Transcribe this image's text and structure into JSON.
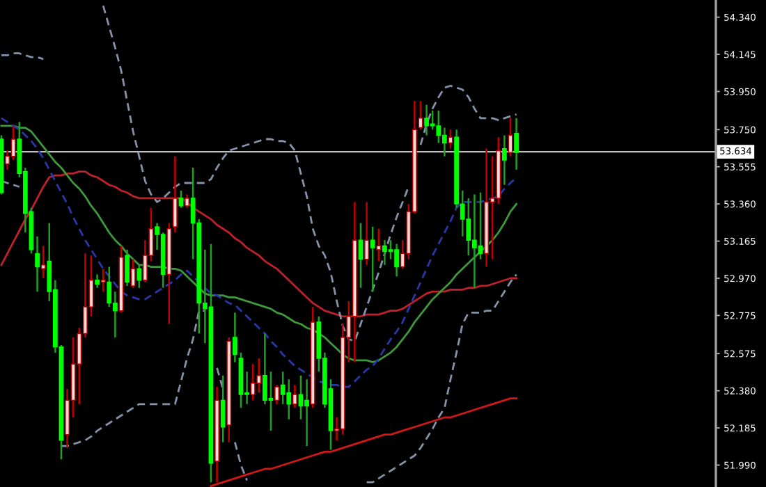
{
  "chart_data": {
    "type": "candlestick",
    "categories": [
      null,
      null,
      null,
      null,
      null,
      null,
      null,
      null,
      null,
      null,
      null,
      null,
      null,
      null,
      null,
      null,
      null,
      null,
      null,
      null,
      null,
      null,
      null,
      null,
      null,
      null,
      null,
      null,
      null,
      null,
      null,
      null,
      null,
      null,
      null,
      null,
      null,
      null,
      null,
      null,
      null,
      null,
      null,
      null,
      null,
      null,
      null,
      null,
      null,
      null,
      null,
      null,
      null,
      null,
      null,
      null,
      null,
      null,
      null,
      null,
      null,
      null,
      null,
      null,
      null,
      null,
      null,
      null,
      null,
      null,
      null,
      null,
      null,
      null,
      null,
      null,
      null,
      null,
      null,
      null,
      null,
      null,
      null,
      null,
      null,
      null,
      null
    ],
    "ohlc": [
      [
        53.7,
        53.72,
        53.41,
        53.42
      ],
      [
        53.57,
        53.64,
        53.54,
        53.61
      ],
      [
        53.61,
        53.77,
        53.59,
        53.7
      ],
      [
        53.7,
        53.79,
        53.5,
        53.52
      ],
      [
        53.53,
        53.55,
        53.21,
        53.31
      ],
      [
        53.32,
        53.34,
        53.1,
        53.12
      ],
      [
        53.1,
        53.19,
        52.9,
        53.03
      ],
      [
        53.02,
        53.14,
        52.97,
        53.04
      ],
      [
        53.06,
        53.26,
        52.85,
        52.9
      ],
      [
        52.91,
        52.96,
        52.58,
        52.61
      ],
      [
        52.61,
        52.62,
        52.02,
        52.12
      ],
      [
        52.15,
        52.39,
        52.08,
        52.33
      ],
      [
        52.33,
        52.66,
        52.24,
        52.52
      ],
      [
        52.52,
        52.71,
        52.31,
        52.68
      ],
      [
        52.68,
        53.1,
        52.66,
        52.82
      ],
      [
        52.82,
        53.09,
        52.77,
        52.96
      ],
      [
        52.96,
        52.99,
        52.92,
        52.94
      ],
      [
        52.95,
        53.02,
        52.9,
        52.96
      ],
      [
        52.95,
        53.03,
        52.82,
        52.84
      ],
      [
        52.84,
        52.9,
        52.66,
        52.8
      ],
      [
        52.8,
        53.14,
        52.79,
        53.08
      ],
      [
        53.09,
        53.12,
        52.93,
        52.95
      ],
      [
        52.93,
        53.07,
        52.92,
        53.02
      ],
      [
        53.02,
        53.04,
        52.92,
        52.96
      ],
      [
        52.96,
        53.17,
        52.95,
        53.09
      ],
      [
        53.09,
        53.34,
        53.06,
        53.23
      ],
      [
        53.24,
        53.26,
        53.12,
        53.2
      ],
      [
        53.2,
        53.21,
        52.92,
        52.99
      ],
      [
        52.99,
        53.26,
        52.73,
        53.23
      ],
      [
        53.24,
        53.61,
        53.21,
        53.39
      ],
      [
        53.39,
        53.43,
        53.34,
        53.35
      ],
      [
        53.35,
        53.41,
        53.34,
        53.39
      ],
      [
        53.39,
        53.55,
        53.07,
        53.26
      ],
      [
        53.26,
        53.28,
        52.68,
        52.84
      ],
      [
        52.84,
        53.12,
        52.63,
        52.81
      ],
      [
        52.82,
        53.15,
        51.9,
        52.0
      ],
      [
        52.01,
        52.4,
        51.9,
        52.33
      ],
      [
        52.33,
        52.46,
        52.11,
        52.19
      ],
      [
        52.2,
        52.66,
        52.11,
        52.64
      ],
      [
        52.66,
        52.79,
        52.53,
        52.57
      ],
      [
        52.55,
        52.58,
        52.29,
        52.36
      ],
      [
        52.37,
        52.48,
        52.31,
        52.36
      ],
      [
        52.36,
        52.52,
        52.33,
        52.42
      ],
      [
        52.42,
        52.55,
        52.37,
        52.46
      ],
      [
        52.46,
        52.68,
        52.31,
        52.33
      ],
      [
        52.34,
        52.48,
        52.17,
        52.33
      ],
      [
        52.33,
        52.41,
        52.31,
        52.4
      ],
      [
        52.41,
        52.48,
        52.31,
        52.36
      ],
      [
        52.37,
        52.44,
        52.23,
        52.31
      ],
      [
        52.31,
        52.41,
        52.29,
        52.36
      ],
      [
        52.36,
        52.46,
        52.23,
        52.3
      ],
      [
        52.33,
        52.44,
        52.09,
        52.3
      ],
      [
        52.31,
        52.82,
        52.29,
        52.74
      ],
      [
        52.74,
        52.77,
        52.48,
        52.55
      ],
      [
        52.55,
        52.58,
        52.29,
        52.31
      ],
      [
        52.39,
        52.44,
        52.07,
        52.17
      ],
      [
        52.17,
        52.24,
        52.12,
        52.18
      ],
      [
        52.18,
        52.73,
        52.15,
        52.66
      ],
      [
        52.66,
        52.85,
        52.53,
        52.77
      ],
      [
        52.77,
        53.37,
        52.53,
        53.17
      ],
      [
        53.17,
        53.26,
        52.92,
        53.07
      ],
      [
        53.07,
        53.37,
        53.04,
        53.17
      ],
      [
        53.17,
        53.24,
        52.9,
        53.13
      ],
      [
        53.12,
        53.23,
        53.06,
        53.14
      ],
      [
        53.14,
        53.17,
        53.04,
        53.11
      ],
      [
        53.12,
        53.17,
        53.07,
        53.11
      ],
      [
        53.12,
        53.15,
        52.98,
        53.03
      ],
      [
        53.03,
        53.17,
        53.02,
        53.1
      ],
      [
        53.1,
        53.36,
        53.07,
        53.32
      ],
      [
        53.32,
        53.9,
        53.31,
        53.75
      ],
      [
        53.76,
        53.9,
        53.75,
        53.81
      ],
      [
        53.81,
        53.88,
        53.72,
        53.77
      ],
      [
        53.78,
        53.85,
        53.75,
        53.77
      ],
      [
        53.77,
        53.85,
        53.68,
        53.72
      ],
      [
        53.72,
        53.76,
        53.61,
        53.68
      ],
      [
        53.68,
        53.75,
        53.65,
        53.71
      ],
      [
        53.71,
        53.75,
        53.34,
        53.36
      ],
      [
        53.36,
        53.43,
        53.19,
        53.28
      ],
      [
        53.28,
        53.39,
        53.09,
        53.17
      ],
      [
        53.17,
        53.41,
        52.92,
        53.13
      ],
      [
        53.14,
        53.42,
        53.07,
        53.1
      ],
      [
        53.1,
        53.65,
        53.03,
        53.37
      ],
      [
        53.37,
        53.61,
        53.07,
        53.39
      ],
      [
        53.39,
        53.71,
        53.36,
        53.64
      ],
      [
        53.65,
        53.72,
        53.46,
        53.59
      ],
      [
        53.63,
        53.81,
        53.61,
        53.72
      ],
      [
        53.73,
        53.81,
        53.54,
        53.63
      ]
    ],
    "colors": [
      "#00ff00",
      "#ffd8d8",
      "#ffd8d8",
      "#00ff00",
      "#00ff00",
      "#00ff00",
      "#00ff00",
      "#ffd8d8",
      "#00ff00",
      "#00ff00",
      "#00ff00",
      "#ffd8d8",
      "#ffd8d8",
      "#ffd8d8",
      "#ffd8d8",
      "#ffd8d8",
      "#00ff00",
      "#ffd8d8",
      "#00ff00",
      "#00ff00",
      "#ffd8d8",
      "#00ff00",
      "#ffd8d8",
      "#00ff00",
      "#ffd8d8",
      "#ffd8d8",
      "#00ff00",
      "#00ff00",
      "#ffd8d8",
      "#ffd8d8",
      "#00ff00",
      "#ffd8d8",
      "#00ff00",
      "#00ff00",
      "#00ff00",
      "#00ff00",
      "#ffd8d8",
      "#00ff00",
      "#ffd8d8",
      "#00ff00",
      "#00ff00",
      "#00ff00",
      "#ffd8d8",
      "#ffd8d8",
      "#00ff00",
      "#00ff00",
      "#ffd8d8",
      "#00ff00",
      "#00ff00",
      "#ffd8d8",
      "#00ff00",
      "#00ff00",
      "#ffd8d8",
      "#00ff00",
      "#00ff00",
      "#00ff00",
      "#ffd8d8",
      "#ffd8d8",
      "#ffd8d8",
      "#ffd8d8",
      "#00ff00",
      "#ffd8d8",
      "#00ff00",
      "#ffd8d8",
      "#00ff00",
      "#00ff00",
      "#00ff00",
      "#ffd8d8",
      "#ffd8d8",
      "#ffd8d8",
      "#ffd8d8",
      "#00ff00",
      "#00ff00",
      "#00ff00",
      "#00ff00",
      "#ffd8d8",
      "#00ff00",
      "#00ff00",
      "#00ff00",
      "#00ff00",
      "#00ff00",
      "#ffd8d8",
      "#ffd8d8",
      "#ffd8d8",
      "#00ff00",
      "#ffd8d8",
      "#00ff00"
    ],
    "series": [
      {
        "type": "line",
        "color": "#c0202c",
        "line_style": "solid",
        "values": [
          53.04,
          53.1,
          53.16,
          53.22,
          53.28,
          53.33,
          53.39,
          53.45,
          53.5,
          53.51,
          53.51,
          53.52,
          53.52,
          53.53,
          53.53,
          53.51,
          53.5,
          53.48,
          53.46,
          53.45,
          53.43,
          53.42,
          53.4,
          53.39,
          53.39,
          53.39,
          53.39,
          53.39,
          53.39,
          53.39,
          53.39,
          53.37,
          53.34,
          53.32,
          53.3,
          53.28,
          53.25,
          53.23,
          53.21,
          53.18,
          53.16,
          53.13,
          53.11,
          53.09,
          53.06,
          53.04,
          53.02,
          52.99,
          52.96,
          52.93,
          52.9,
          52.87,
          52.84,
          52.82,
          52.8,
          52.79,
          52.78,
          52.77,
          52.77,
          52.77,
          52.77,
          52.78,
          52.78,
          52.78,
          52.79,
          52.8,
          52.8,
          52.81,
          52.83,
          52.85,
          52.87,
          52.89,
          52.9,
          52.9,
          52.9,
          52.91,
          52.91,
          52.91,
          52.92,
          52.92,
          52.93,
          52.93,
          52.94,
          52.95,
          52.96,
          52.97,
          52.97
        ]
      },
      {
        "type": "line",
        "color": "#3c9a3c",
        "line_style": "solid",
        "values": [
          53.77,
          53.77,
          53.77,
          53.76,
          53.76,
          53.74,
          53.7,
          53.66,
          53.62,
          53.58,
          53.55,
          53.51,
          53.47,
          53.44,
          53.4,
          53.35,
          53.31,
          53.26,
          53.21,
          53.17,
          53.14,
          53.1,
          53.07,
          53.04,
          53.04,
          53.03,
          53.03,
          53.03,
          53.02,
          53.02,
          53.01,
          52.98,
          52.95,
          52.92,
          52.89,
          52.88,
          52.88,
          52.88,
          52.87,
          52.87,
          52.86,
          52.85,
          52.84,
          52.83,
          52.82,
          52.81,
          52.79,
          52.78,
          52.76,
          52.74,
          52.73,
          52.71,
          52.7,
          52.68,
          52.66,
          52.63,
          52.6,
          52.57,
          52.55,
          52.54,
          52.54,
          52.54,
          52.53,
          52.54,
          52.56,
          52.58,
          52.61,
          52.65,
          52.69,
          52.74,
          52.78,
          52.82,
          52.86,
          52.89,
          52.92,
          52.95,
          52.99,
          53.02,
          53.05,
          53.08,
          53.11,
          53.14,
          53.17,
          53.21,
          53.26,
          53.32,
          53.36
        ]
      },
      {
        "type": "line",
        "color": "#2838a8",
        "line_style": "dashed",
        "values": [
          53.81,
          53.79,
          53.77,
          53.75,
          53.72,
          53.69,
          53.65,
          53.6,
          53.54,
          53.48,
          53.42,
          53.36,
          53.29,
          53.23,
          53.17,
          53.12,
          53.07,
          53.02,
          52.98,
          52.94,
          52.9,
          52.88,
          52.87,
          52.86,
          52.86,
          52.88,
          52.9,
          52.92,
          52.94,
          52.96,
          52.99,
          53.01,
          52.98,
          52.95,
          52.92,
          52.89,
          52.88,
          52.86,
          52.84,
          52.83,
          52.8,
          52.77,
          52.74,
          52.71,
          52.68,
          52.64,
          52.61,
          52.57,
          52.54,
          52.51,
          52.49,
          52.47,
          52.45,
          52.43,
          52.42,
          52.41,
          52.41,
          52.4,
          52.4,
          52.43,
          52.46,
          52.49,
          52.51,
          52.55,
          52.6,
          52.65,
          52.69,
          52.74,
          52.81,
          52.88,
          52.95,
          53.02,
          53.09,
          53.15,
          53.21,
          53.27,
          53.34,
          53.37,
          53.37,
          53.37,
          53.37,
          53.38,
          53.39,
          53.4,
          53.44,
          53.47,
          53.5
        ]
      },
      {
        "type": "line",
        "color": "#8492aa",
        "line_style": "dashed",
        "values": [
          54.14,
          54.14,
          54.15,
          54.15,
          54.14,
          54.13,
          54.13,
          54.12,
          null,
          null,
          null,
          null,
          null,
          null,
          null,
          null,
          null,
          54.4,
          54.29,
          54.18,
          54.06,
          53.9,
          53.74,
          53.61,
          53.48,
          53.41,
          53.37,
          53.39,
          53.42,
          53.45,
          53.47,
          53.47,
          53.47,
          53.47,
          53.47,
          53.49,
          53.55,
          53.6,
          53.64,
          53.65,
          53.66,
          53.67,
          53.68,
          53.69,
          53.7,
          53.7,
          53.69,
          53.69,
          53.68,
          53.64,
          53.52,
          53.4,
          53.23,
          53.14,
          53.09,
          53.0,
          52.85,
          52.72,
          52.65,
          52.64,
          52.73,
          52.82,
          52.91,
          53.0,
          53.1,
          53.2,
          53.29,
          53.37,
          53.45,
          null,
          53.67,
          53.78,
          53.86,
          53.92,
          53.97,
          53.98,
          53.97,
          53.96,
          53.92,
          53.86,
          53.81,
          53.81,
          53.81,
          53.8,
          53.81,
          53.82,
          53.83
        ]
      },
      {
        "type": "line",
        "color": "#8492aa",
        "line_style": "dashed",
        "values": [
          53.48,
          53.47,
          53.46,
          53.45,
          null,
          null,
          null,
          null,
          null,
          null,
          52.09,
          52.09,
          52.1,
          52.11,
          52.12,
          52.14,
          52.17,
          52.19,
          52.21,
          52.23,
          52.25,
          52.27,
          52.29,
          52.31,
          52.31,
          52.31,
          52.31,
          52.31,
          52.31,
          52.31,
          52.43,
          52.55,
          52.65,
          52.8,
          52.8,
          null,
          52.5,
          52.39,
          null,
          52.11,
          51.99,
          51.91,
          null,
          null,
          null,
          null,
          null,
          null,
          null,
          null,
          null,
          null,
          null,
          null,
          null,
          null,
          null,
          null,
          null,
          null,
          null,
          51.9,
          51.9,
          51.92,
          51.94,
          51.96,
          51.98,
          52.0,
          52.02,
          52.04,
          52.08,
          52.13,
          52.18,
          52.24,
          52.29,
          52.44,
          52.58,
          52.73,
          52.79,
          52.79,
          52.79,
          52.8,
          52.8,
          52.85,
          52.9,
          52.95,
          52.99
        ]
      },
      {
        "type": "line",
        "color": "#d01818",
        "line_style": "solid",
        "values": [
          null,
          null,
          null,
          null,
          null,
          null,
          null,
          null,
          null,
          null,
          null,
          null,
          null,
          null,
          null,
          null,
          null,
          null,
          null,
          null,
          null,
          null,
          null,
          null,
          null,
          null,
          null,
          null,
          null,
          null,
          null,
          null,
          null,
          null,
          null,
          51.88,
          51.89,
          51.9,
          51.91,
          51.92,
          51.93,
          51.94,
          51.95,
          51.96,
          51.97,
          51.97,
          51.98,
          51.99,
          52.0,
          52.01,
          52.02,
          52.03,
          52.04,
          52.05,
          52.06,
          52.06,
          52.07,
          52.08,
          52.09,
          52.1,
          52.11,
          52.12,
          52.13,
          52.14,
          52.15,
          52.15,
          52.16,
          52.17,
          52.18,
          52.19,
          52.2,
          52.21,
          52.22,
          52.23,
          52.24,
          52.24,
          52.25,
          52.26,
          52.27,
          52.28,
          52.29,
          52.3,
          52.31,
          52.32,
          52.33,
          52.34,
          52.34
        ]
      }
    ],
    "ylim": [
      51.875,
      54.43
    ],
    "yticks": [
      {
        "value": 54.34,
        "label": "54.340"
      },
      {
        "value": 54.145,
        "label": "54.145"
      },
      {
        "value": 53.95,
        "label": "53.950"
      },
      {
        "value": 53.75,
        "label": "53.750"
      },
      {
        "value": 53.555,
        "label": "53.555"
      },
      {
        "value": 53.36,
        "label": "53.360"
      },
      {
        "value": 53.165,
        "label": "53.165"
      },
      {
        "value": 52.97,
        "label": "52.970"
      },
      {
        "value": 52.775,
        "label": "52.775"
      },
      {
        "value": 52.575,
        "label": "52.575"
      },
      {
        "value": 52.38,
        "label": "52.380"
      },
      {
        "value": 52.185,
        "label": "52.185"
      },
      {
        "value": 51.99,
        "label": "51.990"
      }
    ],
    "ref_lines": [
      {
        "axis": "y",
        "value": 53.634,
        "label": "53.634",
        "color": "#c0c0c0"
      }
    ],
    "tick_labels": "y"
  }
}
